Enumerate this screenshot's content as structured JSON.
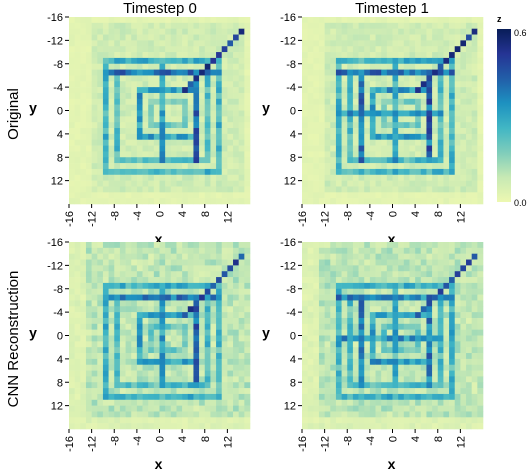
{
  "chart_data": {
    "type": "heatmap",
    "column_titles": [
      "Timestep 0",
      "Timestep 1"
    ],
    "row_labels": [
      "Original",
      "CNN Reconstruction"
    ],
    "x_label": "x",
    "y_label": "y",
    "x_ticks": [
      "-16",
      "-12",
      "-8",
      "-4",
      "0",
      "4",
      "8",
      "12"
    ],
    "y_ticks": [
      "-16",
      "-12",
      "-8",
      "-4",
      "0",
      "4",
      "8",
      "12"
    ],
    "x_range": [
      -16,
      16
    ],
    "y_range": [
      -16,
      16
    ],
    "y_axis_reversed": true,
    "colorbar": {
      "title": "z",
      "min": 0.0,
      "max": 0.6,
      "tick_labels": [
        "0.0",
        "0.6"
      ],
      "colors": [
        "#edf8b1",
        "#c7e9b4",
        "#7fcdbb",
        "#41b6c4",
        "#1d91c0",
        "#225ea8",
        "#253494",
        "#081d58"
      ]
    },
    "panels": [
      {
        "row": "Original",
        "column": "Timestep 0"
      },
      {
        "row": "Original",
        "column": "Timestep 1"
      },
      {
        "row": "CNN Reconstruction",
        "column": "Timestep 0"
      },
      {
        "row": "CNN Reconstruction",
        "column": "Timestep 1"
      }
    ]
  }
}
